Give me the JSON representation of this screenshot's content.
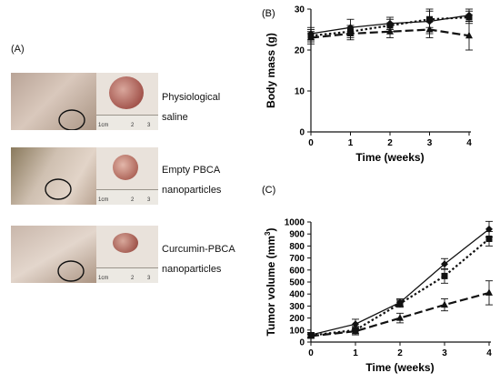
{
  "panel_a": {
    "letter": "(A)",
    "groups": [
      {
        "line1": "Physiological",
        "line2": "saline"
      },
      {
        "line1": "Empty PBCA",
        "line2": "nanoparticles"
      },
      {
        "line1": "Curcumin-PBCA",
        "line2": "nanoparticles"
      }
    ],
    "ruler_labels": [
      "1cm",
      "2",
      "3"
    ]
  },
  "chart_data": [
    {
      "panel": "(B)",
      "type": "line",
      "xlabel": "Time (weeks)",
      "ylabel": "Body mass (g)",
      "x": [
        0,
        1,
        2,
        3,
        4
      ],
      "xlim": [
        0,
        4
      ],
      "ylim": [
        0,
        30
      ],
      "xticks": [
        0,
        1,
        2,
        3,
        4
      ],
      "yticks": [
        0,
        10,
        20,
        30
      ],
      "series": [
        {
          "marker": "diamond",
          "style": "solid",
          "values": [
            24.0,
            25.5,
            26.5,
            27.0,
            28.5
          ],
          "errors": [
            1.5,
            2.0,
            1.5,
            3.0,
            1.5
          ]
        },
        {
          "marker": "square",
          "style": "dotted",
          "values": [
            23.5,
            24.5,
            26.0,
            27.5,
            28.0
          ],
          "errors": [
            1.5,
            1.5,
            1.5,
            2.0,
            1.5
          ]
        },
        {
          "marker": "triangle",
          "style": "dashed",
          "values": [
            23.0,
            24.0,
            24.5,
            25.0,
            23.5
          ],
          "errors": [
            1.5,
            1.5,
            1.5,
            2.0,
            3.5
          ]
        }
      ]
    },
    {
      "panel": "(C)",
      "type": "line",
      "xlabel": "Time (weeks)",
      "ylabel": "Tumor volume (mm",
      "ylabel_sup": "3",
      "ylabel_end": ")",
      "x": [
        0,
        1,
        2,
        3,
        4
      ],
      "xlim": [
        0,
        4
      ],
      "ylim": [
        0,
        1000
      ],
      "xticks": [
        0,
        1,
        2,
        3,
        4
      ],
      "yticks": [
        0,
        100,
        200,
        300,
        400,
        500,
        600,
        700,
        800,
        900,
        1000
      ],
      "series": [
        {
          "marker": "diamond",
          "style": "solid",
          "values": [
            60,
            150,
            330,
            650,
            940
          ],
          "errors": [
            20,
            40,
            30,
            45,
            65
          ]
        },
        {
          "marker": "square",
          "style": "dotted",
          "values": [
            55,
            100,
            320,
            550,
            860
          ],
          "errors": [
            20,
            30,
            30,
            60,
            60
          ]
        },
        {
          "marker": "triangle",
          "style": "dashed",
          "values": [
            50,
            90,
            200,
            310,
            410
          ],
          "errors": [
            15,
            30,
            40,
            50,
            100
          ]
        }
      ]
    }
  ]
}
